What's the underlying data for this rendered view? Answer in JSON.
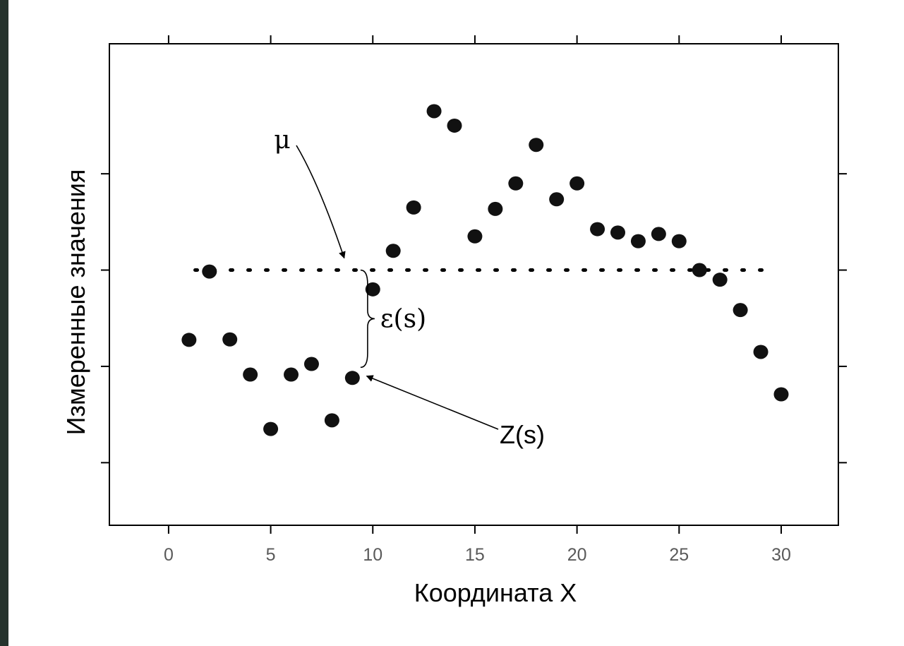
{
  "chart_data": {
    "type": "scatter",
    "title": "",
    "xlabel": "Координата X",
    "ylabel": "Измеренные значения",
    "xlim": [
      -2.9,
      32.8
    ],
    "ylim": [
      0,
      10
    ],
    "x_ticks": [
      0,
      5,
      10,
      15,
      20,
      25,
      30
    ],
    "y_ticks": [
      1.3,
      3.3,
      5.3,
      7.3
    ],
    "y_tick_labels_visible": false,
    "grid": false,
    "mean_line": {
      "label": "μ",
      "y": 5.3,
      "x_range": [
        1.3,
        29.6
      ],
      "style": "dotted"
    },
    "annotations": [
      {
        "label": "μ",
        "target": [
          8.6,
          5.55
        ]
      },
      {
        "label": "ε(s)",
        "brace_x": 9.4,
        "brace_from": 5.3,
        "brace_to": 3.28
      },
      {
        "label": "Z(s)",
        "target": [
          9.7,
          3.1
        ]
      }
    ],
    "points": [
      {
        "x": 1,
        "y": 3.85
      },
      {
        "x": 2,
        "y": 5.27
      },
      {
        "x": 3,
        "y": 3.86
      },
      {
        "x": 4,
        "y": 3.13
      },
      {
        "x": 5,
        "y": 2.0
      },
      {
        "x": 6,
        "y": 3.13
      },
      {
        "x": 7,
        "y": 3.35
      },
      {
        "x": 8,
        "y": 2.18
      },
      {
        "x": 9,
        "y": 3.06
      },
      {
        "x": 10,
        "y": 4.9
      },
      {
        "x": 11,
        "y": 5.7
      },
      {
        "x": 12,
        "y": 6.6
      },
      {
        "x": 13,
        "y": 8.6
      },
      {
        "x": 14,
        "y": 8.3
      },
      {
        "x": 15,
        "y": 6.0
      },
      {
        "x": 16,
        "y": 6.57
      },
      {
        "x": 17,
        "y": 7.1
      },
      {
        "x": 18,
        "y": 7.9
      },
      {
        "x": 19,
        "y": 6.77
      },
      {
        "x": 20,
        "y": 7.1
      },
      {
        "x": 21,
        "y": 6.15
      },
      {
        "x": 22,
        "y": 6.08
      },
      {
        "x": 23,
        "y": 5.9
      },
      {
        "x": 24,
        "y": 6.05
      },
      {
        "x": 25,
        "y": 5.9
      },
      {
        "x": 26,
        "y": 5.3
      },
      {
        "x": 27,
        "y": 5.1
      },
      {
        "x": 28,
        "y": 4.47
      },
      {
        "x": 29,
        "y": 3.6
      },
      {
        "x": 30,
        "y": 2.72
      }
    ]
  }
}
